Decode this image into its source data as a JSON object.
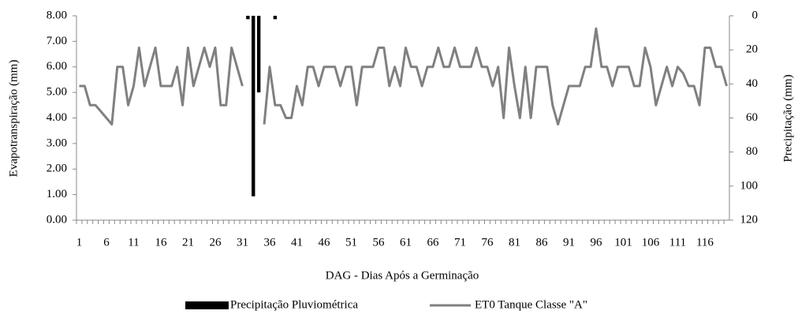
{
  "chart_data": {
    "type": "bar-line",
    "x_label": "DAG - Dias Após a Germinação",
    "y_label": "Evapotranspiração (mm)",
    "y2_label": "Precipitação (mm)",
    "categories": [
      "1",
      null,
      null,
      null,
      null,
      "6",
      null,
      null,
      null,
      null,
      "11",
      null,
      null,
      null,
      null,
      "16",
      null,
      null,
      null,
      null,
      "21",
      null,
      null,
      null,
      null,
      "26",
      null,
      null,
      null,
      null,
      "31",
      null,
      null,
      null,
      null,
      "36",
      null,
      null,
      null,
      null,
      "41",
      null,
      null,
      null,
      null,
      "46",
      null,
      null,
      null,
      null,
      "51",
      null,
      null,
      null,
      null,
      "56",
      null,
      null,
      null,
      null,
      "61",
      null,
      null,
      null,
      null,
      "66",
      null,
      null,
      null,
      null,
      "71",
      null,
      null,
      null,
      null,
      "76",
      null,
      null,
      null,
      null,
      "81",
      null,
      null,
      null,
      null,
      "86",
      null,
      null,
      null,
      null,
      "91",
      null,
      null,
      null,
      null,
      "96",
      null,
      null,
      null,
      null,
      "101",
      null,
      null,
      null,
      null,
      "106",
      null,
      null,
      null,
      null,
      "111",
      null,
      null,
      null,
      null,
      "116",
      null,
      null,
      null,
      null
    ],
    "series": [
      {
        "name": "Precipitação Pluviométrica",
        "color": "#000000",
        "axis": "y2",
        "kind": "bar",
        "values": [
          null,
          null,
          null,
          null,
          null,
          null,
          null,
          null,
          null,
          null,
          null,
          null,
          null,
          null,
          null,
          null,
          null,
          null,
          null,
          null,
          null,
          null,
          null,
          null,
          null,
          null,
          null,
          null,
          null,
          null,
          null,
          2,
          106,
          45,
          null,
          null,
          2,
          null,
          null,
          null,
          null,
          null,
          null,
          null,
          null,
          null,
          null,
          null,
          null,
          null,
          null,
          null,
          null,
          null,
          null,
          null,
          null,
          null,
          null,
          null,
          null,
          null,
          null,
          null,
          null,
          null,
          null,
          null,
          null,
          null,
          null,
          null,
          null,
          null,
          null,
          null,
          null,
          null,
          null,
          null,
          null,
          null,
          null,
          null,
          null,
          null,
          null,
          null,
          null,
          null,
          null,
          null,
          null,
          null,
          null,
          null,
          null,
          null,
          null,
          null,
          null,
          null,
          null,
          null,
          null,
          null,
          null,
          null,
          null,
          null,
          null,
          null,
          null,
          null,
          null,
          null,
          null,
          null,
          null,
          null
        ]
      },
      {
        "name": "ET0 Tanque Classe \"A\"",
        "color": "#808080",
        "kind": "line",
        "values": [
          5.25,
          5.25,
          4.5,
          4.5,
          4.25,
          4.0,
          3.75,
          6.0,
          6.0,
          4.5,
          5.25,
          6.75,
          5.25,
          6.0,
          6.75,
          5.25,
          5.25,
          5.25,
          6.0,
          4.5,
          6.75,
          5.25,
          6.0,
          6.75,
          6.0,
          6.75,
          4.5,
          4.5,
          6.75,
          6.0,
          5.25,
          null,
          null,
          null,
          3.75,
          6.0,
          4.5,
          4.5,
          4.0,
          4.0,
          5.25,
          4.5,
          6.0,
          6.0,
          5.25,
          6.0,
          6.0,
          6.0,
          5.25,
          6.0,
          6.0,
          4.5,
          6.0,
          6.0,
          6.0,
          6.75,
          6.75,
          5.25,
          6.0,
          5.25,
          6.75,
          6.0,
          6.0,
          5.25,
          6.0,
          6.0,
          6.75,
          6.0,
          6.0,
          6.75,
          6.0,
          6.0,
          6.0,
          6.75,
          6.0,
          6.0,
          5.25,
          6.0,
          4.0,
          6.75,
          5.25,
          4.0,
          6.0,
          4.0,
          6.0,
          6.0,
          6.0,
          4.5,
          3.75,
          4.5,
          5.25,
          5.25,
          5.25,
          6.0,
          6.0,
          7.5,
          6.0,
          6.0,
          5.25,
          6.0,
          6.0,
          6.0,
          5.25,
          5.25,
          6.75,
          6.0,
          4.5,
          5.25,
          6.0,
          5.25,
          6.0,
          5.75,
          5.25,
          5.25,
          4.5,
          6.75,
          6.75,
          6.0,
          6.0,
          5.25
        ]
      }
    ],
    "ylim": [
      0,
      8
    ],
    "yticks": [
      {
        "value": 0,
        "label": "0.00"
      },
      {
        "value": 1,
        "label": "1.00"
      },
      {
        "value": 2,
        "label": "2.00"
      },
      {
        "value": 3,
        "label": "3.00"
      },
      {
        "value": 4,
        "label": "4.00"
      },
      {
        "value": 5,
        "label": "5.00"
      },
      {
        "value": 6,
        "label": "6.00"
      },
      {
        "value": 7,
        "label": "7.00"
      },
      {
        "value": 8,
        "label": "8.00"
      }
    ],
    "y2lim": [
      120,
      0
    ],
    "y2ticks": [
      0,
      20,
      40,
      60,
      80,
      100,
      120
    ],
    "grid": false,
    "legend": "bottom"
  }
}
